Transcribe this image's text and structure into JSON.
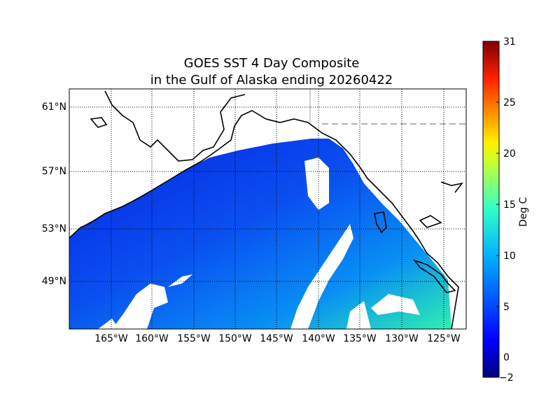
{
  "title_line1": "GOES SST 4 Day Composite",
  "title_line2": "in the Gulf of Alaska ending 20260422",
  "lat_labels": [
    "61°N",
    "57°N",
    "53°N",
    "49°N"
  ],
  "lon_labels": [
    "165°W",
    "160°W",
    "155°W",
    "150°W",
    "145°W",
    "140°W",
    "135°W",
    "130°W",
    "125°W"
  ],
  "colorbar": {
    "label": "Deg C",
    "min": -2,
    "max": 31,
    "ticks": [
      "31",
      "25",
      "20",
      "15",
      "10",
      "5",
      "0",
      "−2"
    ],
    "tick_values": [
      31,
      25,
      20,
      15,
      10,
      5,
      0,
      -2
    ],
    "colormap": "jet"
  },
  "colors": {
    "ocean_cold": "#0a2ee8",
    "ocean_mid": "#0a7cf5",
    "ocean_warm": "#2ff5c8",
    "land": "#ffffff",
    "coast": "#000000"
  }
}
